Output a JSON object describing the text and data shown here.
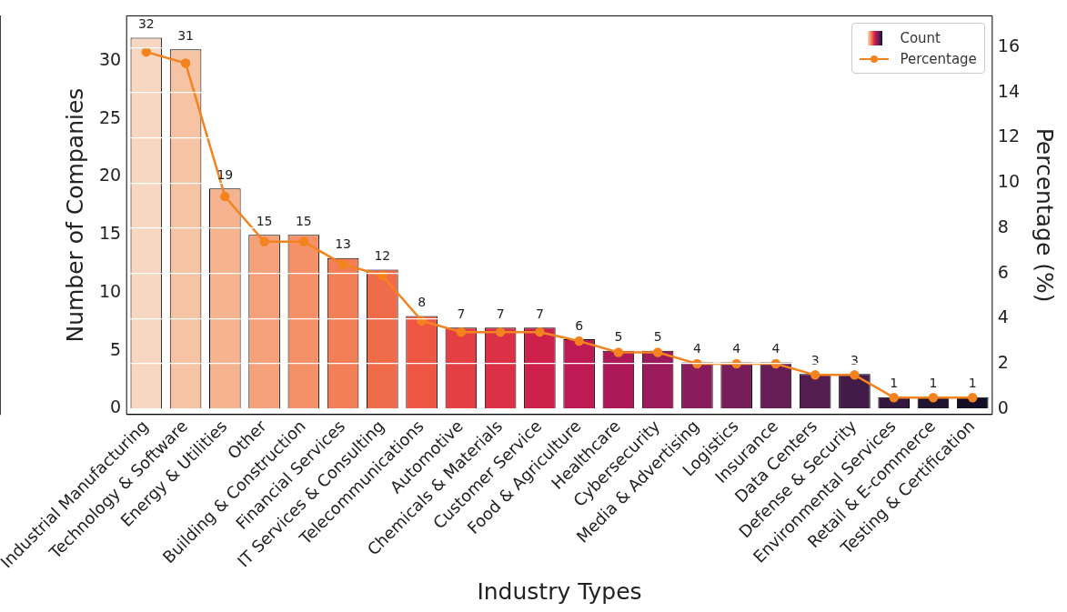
{
  "chart_data": {
    "type": "bar",
    "xlabel": "Industry Types",
    "ylabel": "Number of Companies",
    "y2label": "Percentage (%)",
    "categories": [
      "Industrial Manufacturing",
      "Technology & Software",
      "Energy & Utilities",
      "Other",
      "Building & Construction",
      "Financial Services",
      "IT Services & Consulting",
      "Telecommunications",
      "Automotive",
      "Chemicals & Materials",
      "Customer Service",
      "Food & Agriculture",
      "Healthcare",
      "Cybersecurity",
      "Media & Advertising",
      "Logistics",
      "Insurance",
      "Data Centers",
      "Defense & Security",
      "Environmental Services",
      "Retail & E-commerce",
      "Testing & Certification"
    ],
    "series": [
      {
        "name": "Count",
        "colors": [
          "#f7d7c1",
          "#f6c4a5",
          "#f5b48f",
          "#f5a27a",
          "#f49168",
          "#f37f57",
          "#f06b4a",
          "#ec5642",
          "#e43f43",
          "#db3046",
          "#cd214c",
          "#be1a53",
          "#ad1859",
          "#9b1a5b",
          "#891c5c",
          "#771d5a",
          "#651e56",
          "#541d50",
          "#431b48",
          "#33173e",
          "#221331",
          "#130d25"
        ],
        "values": [
          32,
          31,
          19,
          15,
          15,
          13,
          12,
          8,
          7,
          7,
          7,
          6,
          5,
          5,
          4,
          4,
          4,
          3,
          3,
          1,
          1,
          1
        ],
        "value_labels": [
          "32",
          "31",
          "19",
          "15",
          "15",
          "13",
          "12",
          "8",
          "7",
          "7",
          "7",
          "6",
          "5",
          "5",
          "4",
          "4",
          "4",
          "3",
          "3",
          "1",
          "1",
          "1"
        ]
      },
      {
        "name": "Percentage",
        "type": "line",
        "axis": "y2",
        "color": "#f4831f",
        "values": [
          15.8,
          15.3,
          9.4,
          7.4,
          7.4,
          6.4,
          5.9,
          3.9,
          3.4,
          3.4,
          3.4,
          3.0,
          2.5,
          2.5,
          2.0,
          2.0,
          2.0,
          1.5,
          1.5,
          0.5,
          0.5,
          0.5
        ]
      }
    ],
    "ylim": [
      -0.5,
      33.9
    ],
    "yticks": [
      0,
      5,
      10,
      15,
      20,
      25,
      30
    ],
    "y2lim": [
      -0.25,
      17.4
    ],
    "y2ticks": [
      0,
      2,
      4,
      6,
      8,
      10,
      12,
      14,
      16
    ],
    "grid": "y",
    "legend": "top right",
    "marker": "circle",
    "line_style": "solid"
  }
}
